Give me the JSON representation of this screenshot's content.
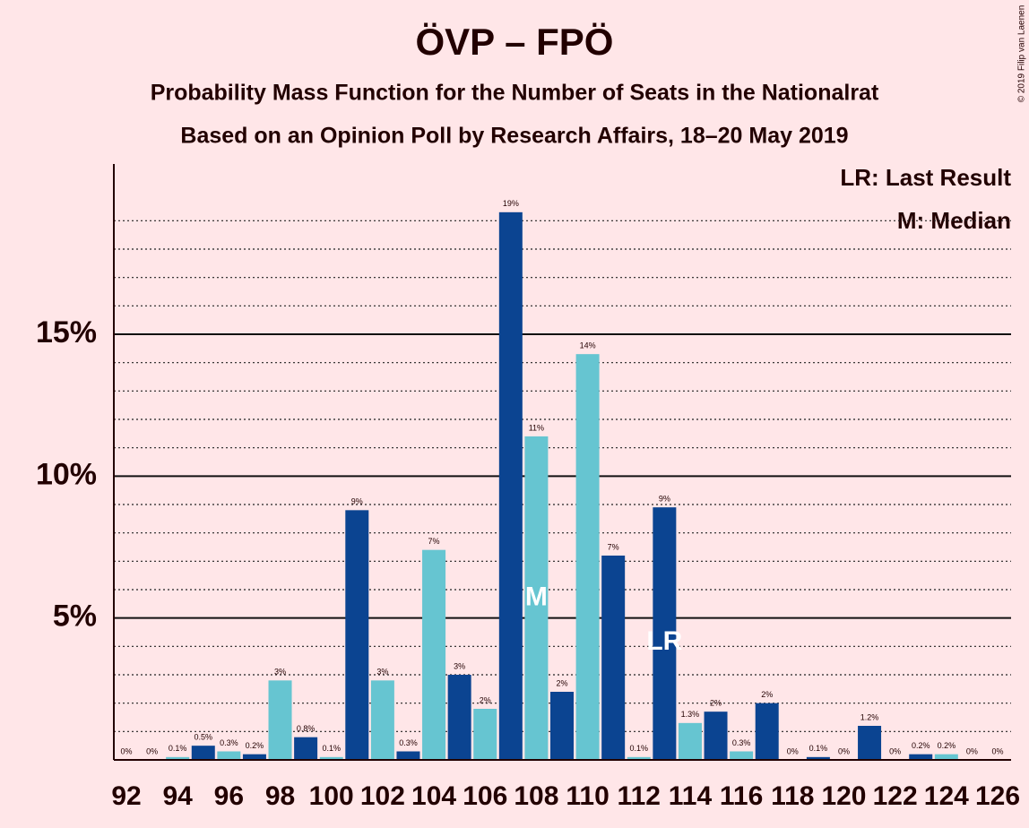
{
  "chart_data": {
    "type": "bar",
    "title": "ÖVP – FPÖ",
    "subtitle": "Probability Mass Function for the Number of Seats in the Nationalrat",
    "subtitle2": "Based on an Opinion Poll by Research Affairs, 18–20 May 2019",
    "copyright": "© 2019 Filip van Laenen",
    "legend": [
      "LR: Last Result",
      "M: Median"
    ],
    "categories": [
      "92",
      null,
      "94",
      null,
      "96",
      null,
      "98",
      null,
      "100",
      null,
      "102",
      null,
      "104",
      null,
      "106",
      null,
      "108",
      null,
      "110",
      null,
      "112",
      null,
      "114",
      null,
      "116",
      null,
      "118",
      null,
      "120",
      null,
      "122",
      null,
      "124",
      null,
      "126"
    ],
    "values": [
      0,
      0,
      0.1,
      0.5,
      0.3,
      0.2,
      2.8,
      0.8,
      0.1,
      8.8,
      2.8,
      0.3,
      7.4,
      3.0,
      1.8,
      19.3,
      11.4,
      2.4,
      14.3,
      7.2,
      0.1,
      8.9,
      1.3,
      1.7,
      0.3,
      2.0,
      0,
      0.1,
      0,
      1.2,
      0,
      0.2,
      0.2,
      0,
      0
    ],
    "value_labels": [
      "0%",
      "0%",
      "0.1%",
      "0.5%",
      "0.3%",
      "0.2%",
      "3%",
      "0.8%",
      "0.1%",
      "9%",
      "3%",
      "0.3%",
      "7%",
      "3%",
      "2%",
      "19%",
      "11%",
      "2%",
      "14%",
      "7%",
      "0.1%",
      "9%",
      "1.3%",
      "2%",
      "0.3%",
      "2%",
      "0%",
      "0.1%",
      "0%",
      "1.2%",
      "0%",
      "0.2%",
      "0.2%",
      "0%",
      "0%"
    ],
    "colors": [
      "#66c5d1",
      "#0b4491",
      "#66c5d1",
      "#0b4491",
      "#66c5d1",
      "#0b4491",
      "#66c5d1",
      "#0b4491",
      "#66c5d1",
      "#0b4491",
      "#66c5d1",
      "#0b4491",
      "#66c5d1",
      "#0b4491",
      "#66c5d1",
      "#0b4491",
      "#66c5d1",
      "#0b4491",
      "#66c5d1",
      "#0b4491",
      "#66c5d1",
      "#0b4491",
      "#66c5d1",
      "#0b4491",
      "#66c5d1",
      "#0b4491",
      "#66c5d1",
      "#0b4491",
      "#66c5d1",
      "#0b4491",
      "#66c5d1",
      "#0b4491",
      "#66c5d1",
      "#0b4491",
      "#66c5d1"
    ],
    "annotations": [
      {
        "index": 16,
        "text": "M"
      },
      {
        "index": 21,
        "text": "LR"
      }
    ],
    "ylim": [
      0,
      21
    ],
    "yticks": [
      {
        "value": 5,
        "label": "5%"
      },
      {
        "value": 10,
        "label": "10%"
      },
      {
        "value": 15,
        "label": "15%"
      }
    ],
    "minor_yticks": [
      1,
      2,
      3,
      4,
      6,
      7,
      8,
      9,
      11,
      12,
      13,
      14,
      16,
      17,
      18,
      19
    ],
    "grid": true
  }
}
